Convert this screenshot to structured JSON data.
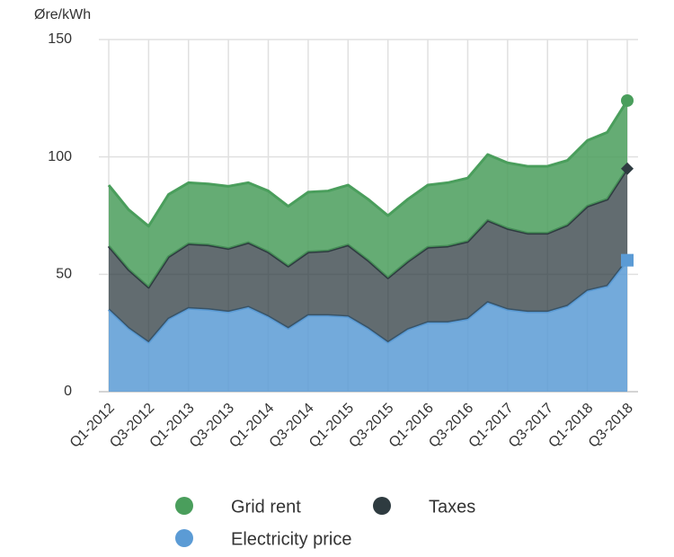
{
  "chart_data": {
    "type": "stacked-area",
    "y_label": "Øre/kWh",
    "categories": [
      "Q1-2012",
      null,
      "Q3-2012",
      null,
      "Q1-2013",
      null,
      "Q3-2013",
      null,
      "Q1-2014",
      null,
      "Q3-2014",
      null,
      "Q1-2015",
      null,
      "Q3-2015",
      null,
      "Q1-2016",
      null,
      "Q3-2016",
      null,
      "Q1-2017",
      null,
      "Q3-2017",
      null,
      "Q1-2018",
      null,
      "Q3-2018"
    ],
    "series": [
      {
        "name": "Electricity price",
        "color": "#5b9bd5",
        "marker": "square",
        "values": [
          35,
          27,
          21,
          31,
          35.5,
          35,
          34,
          36,
          32,
          27,
          32.5,
          32.5,
          32,
          27,
          21,
          26.5,
          29.5,
          29.5,
          31,
          38,
          35,
          34,
          34,
          36.5,
          43,
          45,
          56
        ]
      },
      {
        "name": "Taxes",
        "color": "#2e3b40",
        "marker": "diamond",
        "values": [
          27,
          25,
          23.5,
          26.5,
          27.5,
          27.5,
          27,
          27.5,
          27.5,
          26.5,
          27,
          27.5,
          30.5,
          29,
          27.5,
          29,
          32,
          32.5,
          33,
          35,
          34.5,
          33.5,
          33.5,
          34.5,
          36,
          37,
          39
        ]
      },
      {
        "name": "Grid rent",
        "color": "#4a9e5c",
        "marker": "circle",
        "values": [
          26,
          25.5,
          26,
          26.5,
          26,
          26,
          26.5,
          25.5,
          26,
          25.5,
          25.5,
          25.5,
          25.5,
          26,
          26.5,
          26.5,
          26.5,
          27,
          27,
          28,
          28,
          28.5,
          28.5,
          27.5,
          28,
          28.5,
          29
        ]
      }
    ],
    "ylim": [
      0,
      150
    ],
    "yticks": [
      0,
      50,
      100,
      150
    ],
    "grid": true
  }
}
